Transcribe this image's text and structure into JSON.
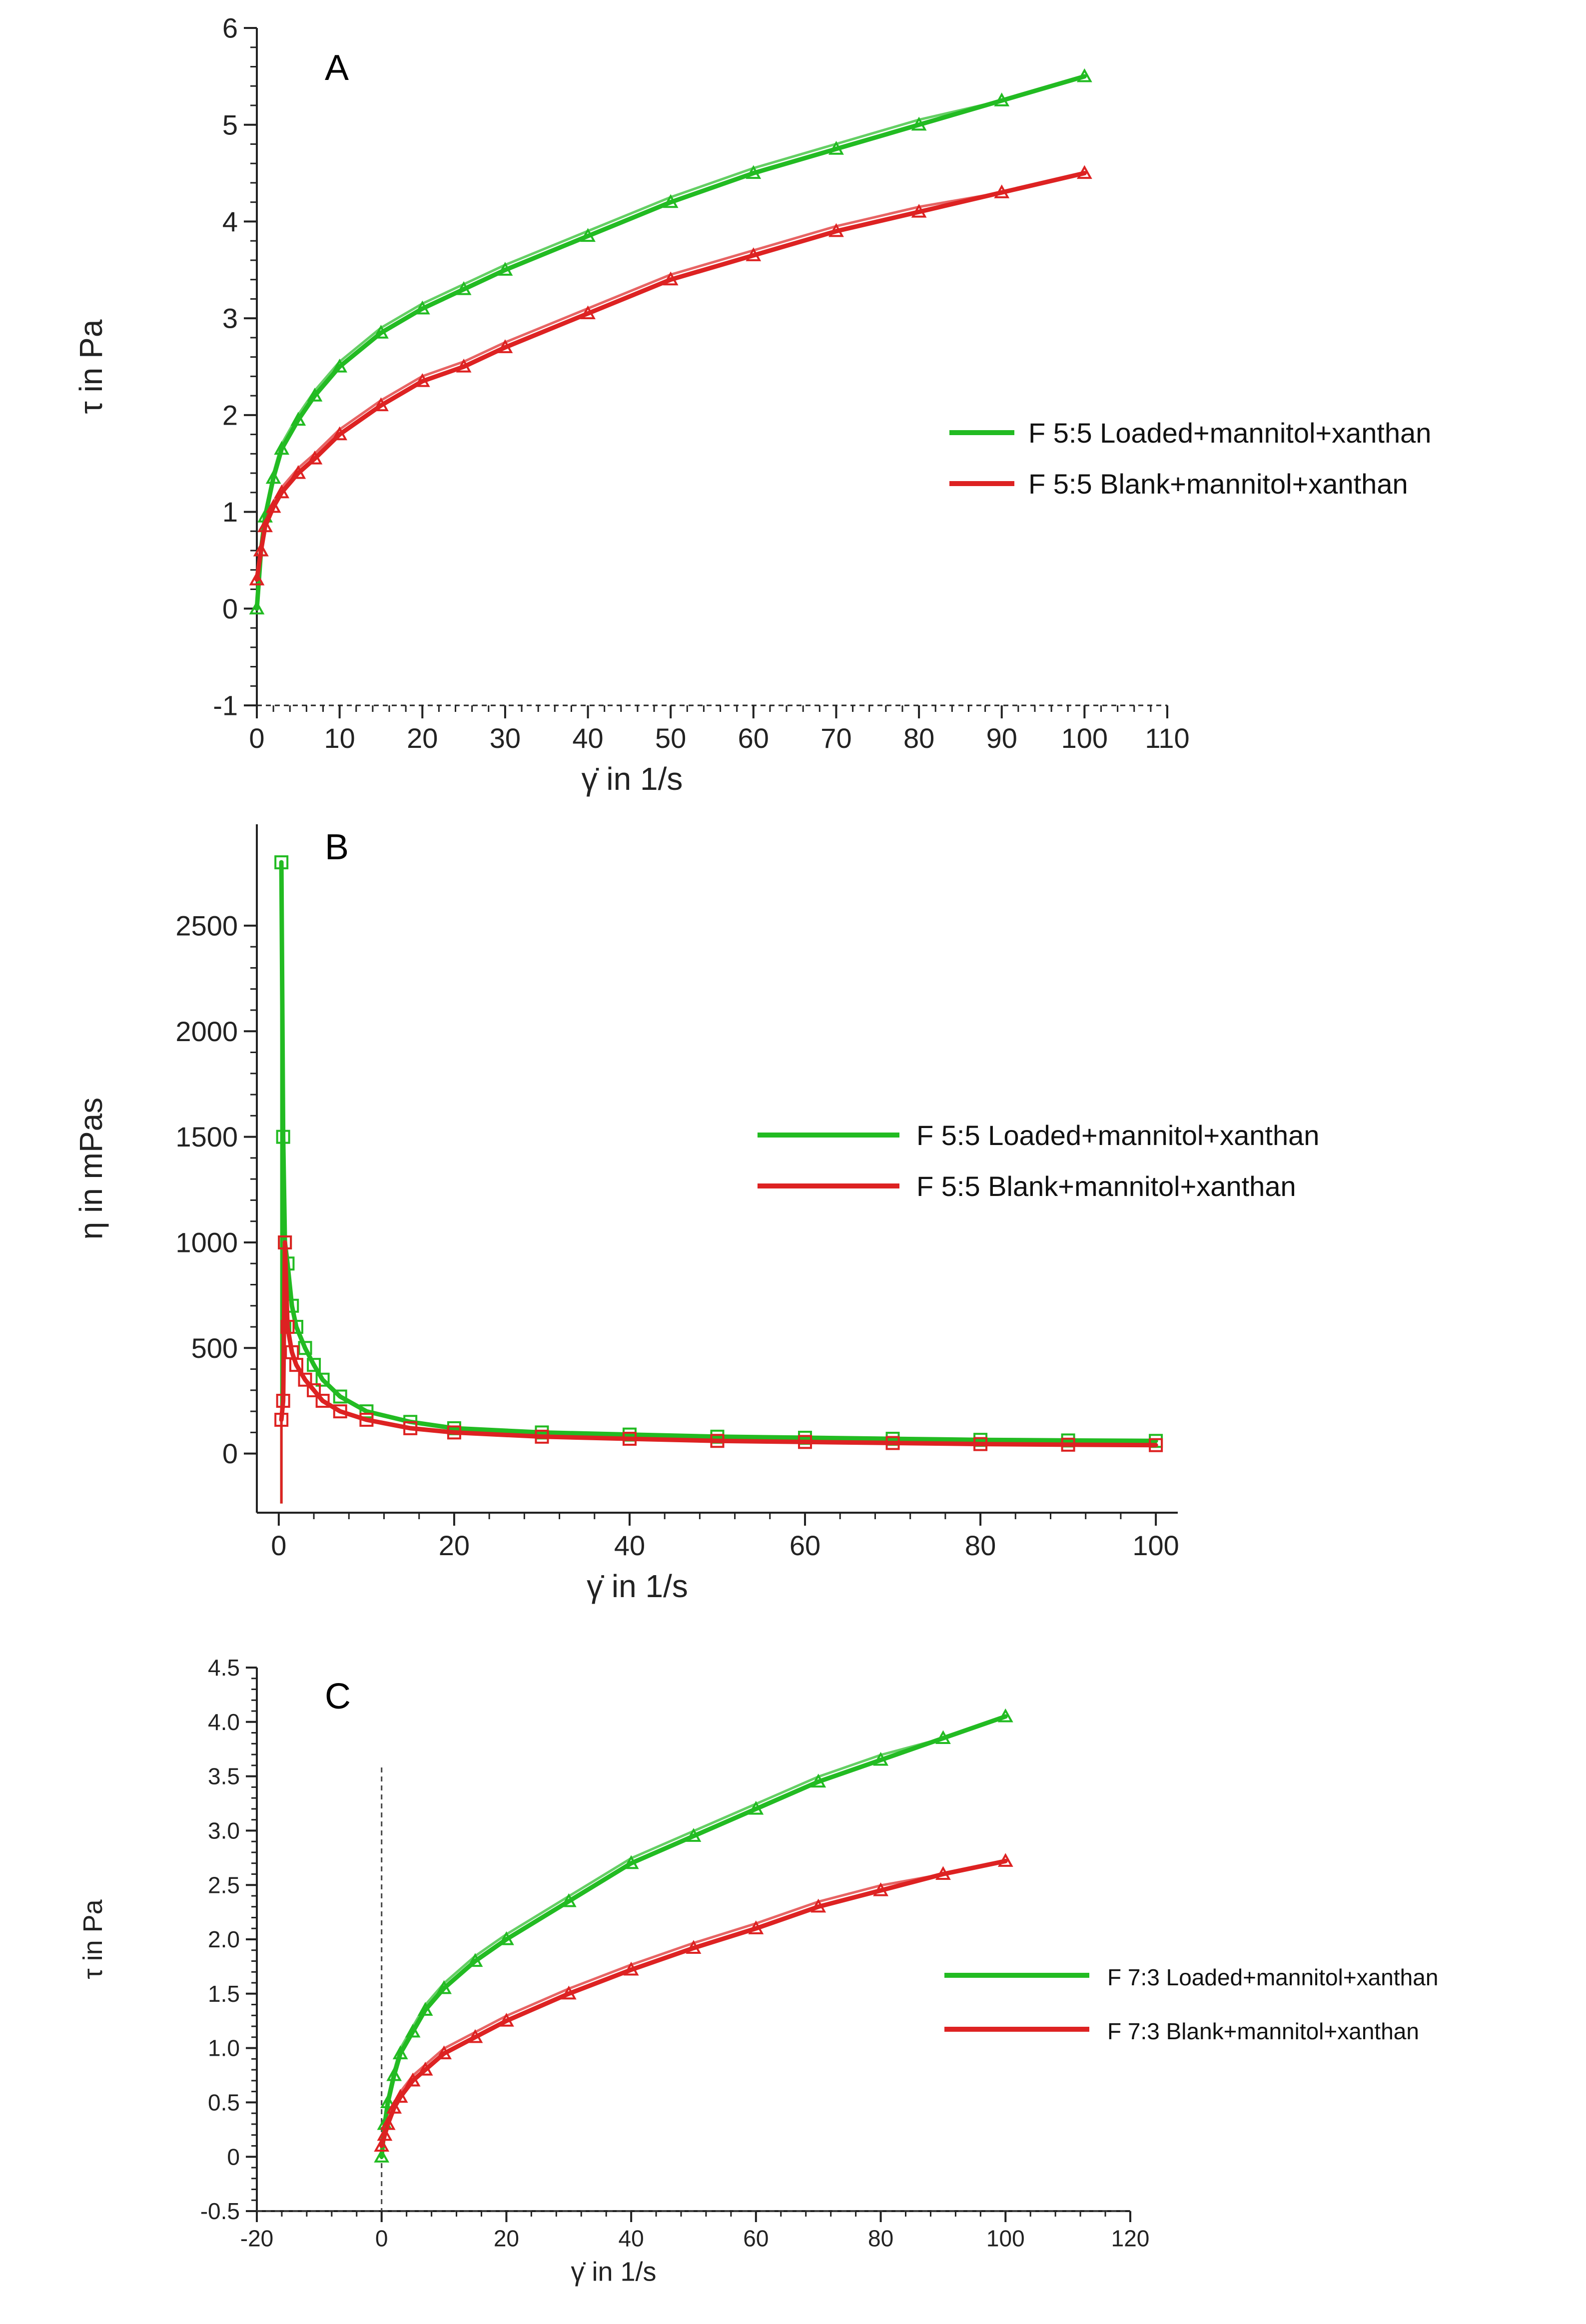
{
  "chart_data": [
    {
      "type": "line",
      "panel_label": "A",
      "xlabel": "γ̇ in 1/s",
      "ylabel": "τ in Pa",
      "xlim": [
        0,
        110
      ],
      "ylim": [
        -1,
        6
      ],
      "xticks": [
        0,
        10,
        20,
        30,
        40,
        50,
        60,
        70,
        80,
        90,
        100,
        110
      ],
      "yticks": [
        -1,
        0,
        1,
        2,
        3,
        4,
        5,
        6
      ],
      "xtick_labels": [
        "0",
        "10",
        "20",
        "30",
        "40",
        "50",
        "60",
        "70",
        "80",
        "90",
        "100",
        "110"
      ],
      "ytick_labels": [
        "-1",
        "0",
        "1",
        "2",
        "3",
        "4",
        "5",
        "6"
      ],
      "legend_position": "right-middle",
      "series": [
        {
          "name": "F 5:5 Loaded+mannitol+xanthan",
          "color": "#22bb22",
          "marker": "triangle",
          "x": [
            0,
            0.5,
            1,
            2,
            3,
            5,
            7,
            10,
            15,
            20,
            25,
            30,
            40,
            50,
            60,
            70,
            80,
            90,
            100
          ],
          "y": [
            0,
            0.6,
            0.95,
            1.35,
            1.65,
            1.95,
            2.2,
            2.5,
            2.85,
            3.1,
            3.3,
            3.5,
            3.85,
            4.2,
            4.5,
            4.75,
            5.0,
            5.25,
            5.5
          ]
        },
        {
          "name": "F 5:5 Blank+mannitol+xanthan",
          "color": "#dd2222",
          "marker": "triangle",
          "x": [
            0,
            0.5,
            1,
            2,
            3,
            5,
            7,
            10,
            15,
            20,
            25,
            30,
            40,
            50,
            60,
            70,
            80,
            90,
            100
          ],
          "y": [
            0.3,
            0.6,
            0.85,
            1.05,
            1.2,
            1.4,
            1.55,
            1.8,
            2.1,
            2.35,
            2.5,
            2.7,
            3.05,
            3.4,
            3.65,
            3.9,
            4.1,
            4.3,
            4.5
          ]
        }
      ]
    },
    {
      "type": "line",
      "panel_label": "B",
      "xlabel": "γ̇ in 1/s",
      "ylabel": "η in mPas",
      "xlim": [
        -2.5,
        102.5
      ],
      "ylim": [
        -280,
        2980
      ],
      "xticks": [
        0,
        20,
        40,
        60,
        80,
        100
      ],
      "yticks": [
        0,
        500,
        1000,
        1500,
        2000,
        2500
      ],
      "xtick_labels": [
        "0",
        "20",
        "40",
        "60",
        "80",
        "100"
      ],
      "ytick_labels": [
        "0",
        "500",
        "1000",
        "1500",
        "2000",
        "2500"
      ],
      "legend_position": "right-top",
      "series": [
        {
          "name": "F 5:5 Loaded+mannitol+xanthan",
          "color": "#22bb22",
          "marker": "square",
          "x": [
            0.3,
            0.5,
            0.7,
            1,
            1.5,
            2,
            3,
            4,
            5,
            7,
            10,
            15,
            20,
            30,
            40,
            50,
            60,
            70,
            80,
            90,
            100
          ],
          "y": [
            2800,
            1500,
            1000,
            900,
            700,
            600,
            500,
            420,
            350,
            270,
            200,
            150,
            120,
            100,
            90,
            80,
            75,
            70,
            65,
            62,
            60
          ]
        },
        {
          "name": "F 5:5 Blank+mannitol+xanthan",
          "color": "#dd2222",
          "marker": "square",
          "x": [
            0.3,
            0.5,
            0.7,
            1,
            1.5,
            2,
            3,
            4,
            5,
            7,
            10,
            15,
            20,
            30,
            40,
            50,
            60,
            70,
            80,
            90,
            100
          ],
          "y": [
            160,
            250,
            1000,
            600,
            480,
            420,
            350,
            300,
            250,
            200,
            160,
            120,
            100,
            80,
            70,
            60,
            55,
            50,
            45,
            42,
            40
          ]
        }
      ]
    },
    {
      "type": "line",
      "panel_label": "C",
      "xlabel": "γ̇ in 1/s",
      "ylabel": "τ in Pa",
      "xlim": [
        -20,
        120
      ],
      "ylim": [
        -0.5,
        4.5
      ],
      "xticks": [
        -20,
        0,
        20,
        40,
        60,
        80,
        100,
        120
      ],
      "yticks": [
        -0.5,
        0,
        0.5,
        1.0,
        1.5,
        2.0,
        2.5,
        3.0,
        3.5,
        4.0,
        4.5
      ],
      "xtick_labels": [
        "-20",
        "0",
        "20",
        "40",
        "60",
        "80",
        "100",
        "120"
      ],
      "ytick_labels": [
        "-0.5",
        "0",
        "0.5",
        "1.0",
        "1.5",
        "2.0",
        "2.5",
        "3.0",
        "3.5",
        "4.0",
        "4.5"
      ],
      "legend_position": "right-middle",
      "series": [
        {
          "name": "F 7:3 Loaded+mannitol+xanthan",
          "color": "#22bb22",
          "marker": "triangle",
          "x": [
            0,
            0.5,
            1,
            2,
            3,
            5,
            7,
            10,
            15,
            20,
            30,
            40,
            50,
            60,
            70,
            80,
            90,
            100
          ],
          "y": [
            0,
            0.3,
            0.5,
            0.75,
            0.95,
            1.15,
            1.35,
            1.55,
            1.8,
            2.0,
            2.35,
            2.7,
            2.95,
            3.2,
            3.45,
            3.65,
            3.85,
            4.05
          ]
        },
        {
          "name": "F 7:3 Blank+mannitol+xanthan",
          "color": "#dd2222",
          "marker": "triangle",
          "x": [
            0,
            0.5,
            1,
            2,
            3,
            5,
            7,
            10,
            15,
            20,
            30,
            40,
            50,
            60,
            70,
            80,
            90,
            100
          ],
          "y": [
            0.1,
            0.2,
            0.3,
            0.45,
            0.55,
            0.7,
            0.8,
            0.95,
            1.1,
            1.25,
            1.5,
            1.72,
            1.92,
            2.1,
            2.3,
            2.45,
            2.6,
            2.72
          ]
        }
      ]
    }
  ]
}
